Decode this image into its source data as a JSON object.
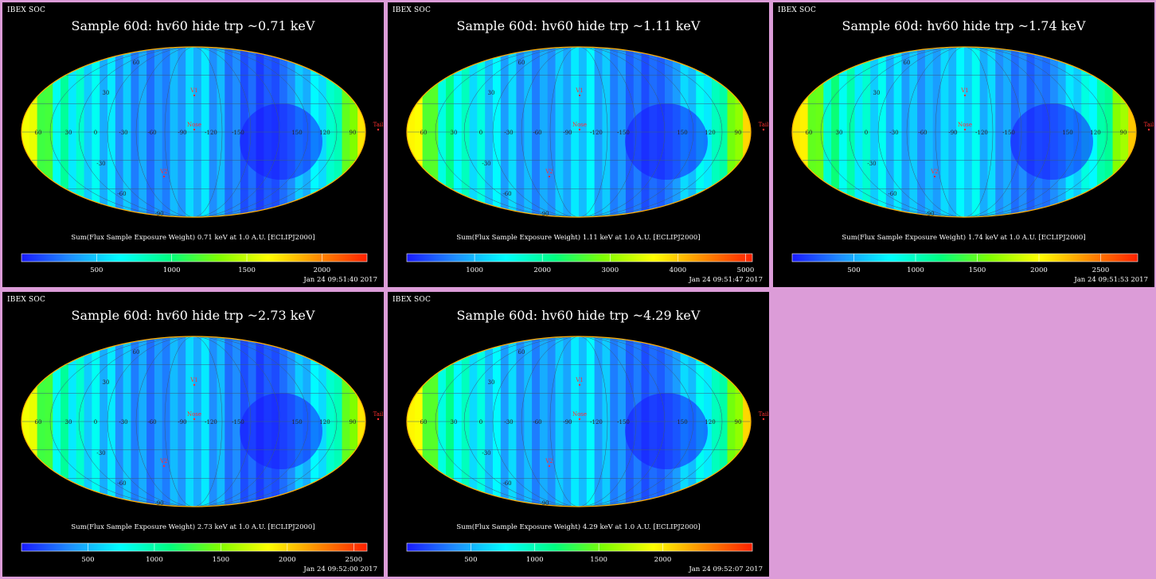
{
  "colors": {
    "frame_background": "#dc9cd8",
    "panel_background": "#000000",
    "marker_color": "#ff3030",
    "colormap": [
      "#1a1aff",
      "#1e90ff",
      "#00ffff",
      "#00ff80",
      "#7fff00",
      "#ffff00",
      "#ff8c00",
      "#ff2000"
    ]
  },
  "panels": [
    {
      "soc": "IBEX SOC",
      "title": "Sample 60d: hv60 hide trp ~0.71 keV",
      "caption": "Sum(Flux Sample Exposure Weight)  0.71 keV at 1.0 A.U. [ECLIPJ2000]",
      "date": "Jan 24 09:51:40 2017",
      "cbar_ticks": [
        "500",
        "1000",
        "1500",
        "2000"
      ],
      "cbar_max": 2300,
      "map": {
        "lon_labels": [
          "60",
          "30",
          "0",
          "-30",
          "-60",
          "-90",
          "-120",
          "-150",
          "150",
          "120",
          "90"
        ],
        "lat_labels": [
          "60",
          "30",
          "-30",
          "-60",
          "-90"
        ],
        "markers": [
          "V1",
          "Nose",
          "V2",
          "Tail"
        ]
      }
    },
    {
      "soc": "IBEX SOC",
      "title": "Sample 60d: hv60 hide trp ~1.11 keV",
      "caption": "Sum(Flux Sample Exposure Weight)  1.11 keV at 1.0 A.U. [ECLIPJ2000]",
      "date": "Jan 24 09:51:47 2017",
      "cbar_ticks": [
        "1000",
        "2000",
        "3000",
        "4000",
        "5000"
      ],
      "cbar_max": 5100,
      "map": {
        "lon_labels": [
          "60",
          "30",
          "0",
          "-30",
          "-60",
          "-90",
          "-120",
          "-150",
          "150",
          "120",
          "90"
        ],
        "lat_labels": [
          "60",
          "30",
          "-30",
          "-60",
          "-90"
        ],
        "markers": [
          "V1",
          "Nose",
          "V2",
          "Tail"
        ]
      }
    },
    {
      "soc": "IBEX SOC",
      "title": "Sample 60d: hv60 hide trp ~1.74 keV",
      "caption": "Sum(Flux Sample Exposure Weight)  1.74 keV at 1.0 A.U. [ECLIPJ2000]",
      "date": "Jan 24 09:51:53 2017",
      "cbar_ticks": [
        "500",
        "1000",
        "1500",
        "2000",
        "2500"
      ],
      "cbar_max": 2800,
      "map": {
        "lon_labels": [
          "60",
          "30",
          "0",
          "-30",
          "-60",
          "-90",
          "-120",
          "-150",
          "150",
          "120",
          "90"
        ],
        "lat_labels": [
          "60",
          "30",
          "-30",
          "-60",
          "-90"
        ],
        "markers": [
          "V1",
          "Nose",
          "V2",
          "Tail"
        ]
      }
    },
    {
      "soc": "IBEX SOC",
      "title": "Sample 60d: hv60 hide trp ~2.73 keV",
      "caption": "Sum(Flux Sample Exposure Weight)  2.73 keV at 1.0 A.U. [ECLIPJ2000]",
      "date": "Jan 24 09:52:00 2017",
      "cbar_ticks": [
        "500",
        "1000",
        "1500",
        "2000",
        "2500"
      ],
      "cbar_max": 2600,
      "map": {
        "lon_labels": [
          "60",
          "30",
          "0",
          "-30",
          "-60",
          "-90",
          "-120",
          "-150",
          "150",
          "120",
          "90"
        ],
        "lat_labels": [
          "60",
          "30",
          "-30",
          "-60",
          "-90"
        ],
        "markers": [
          "V1",
          "Nose",
          "V2",
          "Tail"
        ]
      }
    },
    {
      "soc": "IBEX SOC",
      "title": "Sample 60d: hv60 hide trp ~4.29 keV",
      "caption": "Sum(Flux Sample Exposure Weight)  4.29 keV at 1.0 A.U. [ECLIPJ2000]",
      "date": "Jan 24 09:52:07 2017",
      "cbar_ticks": [
        "500",
        "1000",
        "1500",
        "2000"
      ],
      "cbar_max": 2700,
      "map": {
        "lon_labels": [
          "60",
          "30",
          "0",
          "-30",
          "-60",
          "-90",
          "-120",
          "-150",
          "150",
          "120",
          "90"
        ],
        "lat_labels": [
          "60",
          "30",
          "-30",
          "-60",
          "-90"
        ],
        "markers": [
          "V1",
          "Nose",
          "V2",
          "Tail"
        ]
      }
    }
  ]
}
